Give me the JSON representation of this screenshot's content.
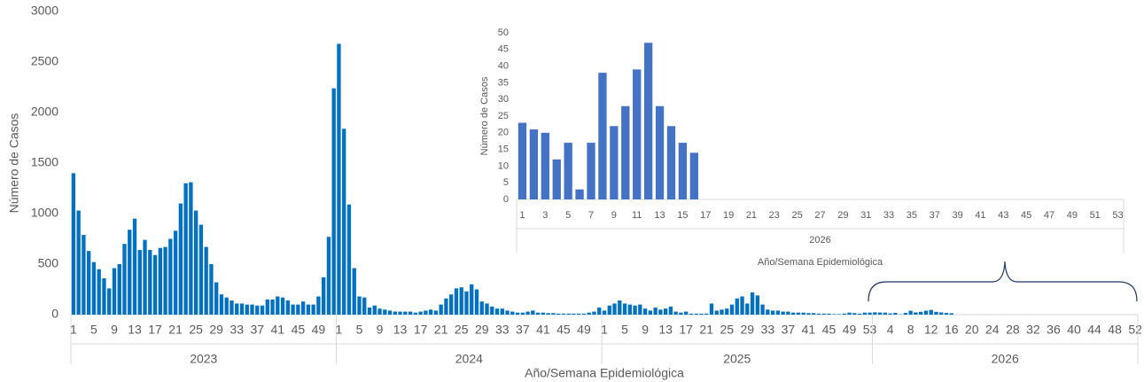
{
  "chart_data": [
    {
      "type": "bar",
      "color": "#0070c0",
      "y_label": "Número de Casos",
      "x_label": "Año/Semana Epidemiológica",
      "ylim": [
        0,
        3000
      ],
      "yticks": [
        0,
        500,
        1000,
        1500,
        2000,
        2500,
        3000
      ],
      "groups": [
        {
          "name": "2023",
          "categories": [
            1,
            null,
            null,
            null,
            5,
            null,
            null,
            null,
            9,
            null,
            null,
            null,
            13,
            null,
            null,
            null,
            17,
            null,
            null,
            null,
            21,
            null,
            null,
            null,
            25,
            null,
            null,
            null,
            29,
            null,
            null,
            null,
            33,
            null,
            null,
            null,
            37,
            null,
            null,
            null,
            41,
            null,
            null,
            null,
            45,
            null,
            null,
            null,
            49,
            null,
            null,
            null
          ],
          "values": [
            1400,
            1030,
            790,
            630,
            520,
            450,
            360,
            260,
            460,
            500,
            700,
            840,
            950,
            640,
            740,
            640,
            590,
            660,
            670,
            750,
            830,
            1100,
            1300,
            1310,
            1030,
            890,
            670,
            500,
            320,
            200,
            170,
            140,
            110,
            110,
            100,
            100,
            90,
            90,
            150,
            150,
            180,
            170,
            140,
            100,
            100,
            130,
            100,
            100,
            180,
            370,
            770,
            2240
          ]
        },
        {
          "name": "2024",
          "categories": [
            1,
            null,
            null,
            null,
            5,
            null,
            null,
            null,
            9,
            null,
            null,
            null,
            13,
            null,
            null,
            null,
            17,
            null,
            null,
            null,
            21,
            null,
            null,
            null,
            25,
            null,
            null,
            null,
            29,
            null,
            null,
            null,
            33,
            null,
            null,
            null,
            37,
            null,
            null,
            null,
            41,
            null,
            null,
            null,
            45,
            null,
            null,
            null,
            49,
            null,
            null,
            null
          ],
          "values": [
            2680,
            1840,
            1090,
            460,
            180,
            170,
            70,
            90,
            60,
            50,
            40,
            30,
            30,
            30,
            30,
            20,
            30,
            40,
            50,
            40,
            100,
            160,
            200,
            260,
            270,
            230,
            300,
            250,
            130,
            110,
            80,
            60,
            60,
            40,
            30,
            20,
            20,
            30,
            40,
            20,
            20,
            15,
            15,
            10,
            10,
            10,
            10,
            10,
            10,
            20,
            30,
            70
          ]
        },
        {
          "name": "2025",
          "categories": [
            1,
            null,
            null,
            null,
            5,
            null,
            null,
            null,
            9,
            null,
            null,
            null,
            13,
            null,
            null,
            null,
            17,
            null,
            null,
            null,
            21,
            null,
            null,
            null,
            25,
            null,
            null,
            null,
            29,
            null,
            null,
            null,
            33,
            null,
            null,
            null,
            37,
            null,
            null,
            null,
            41,
            null,
            null,
            null,
            45,
            null,
            null,
            null,
            49,
            null,
            null,
            null,
            53
          ],
          "values": [
            40,
            90,
            110,
            140,
            110,
            100,
            90,
            100,
            60,
            40,
            70,
            50,
            60,
            80,
            30,
            20,
            30,
            10,
            10,
            10,
            10,
            110,
            40,
            50,
            60,
            100,
            160,
            180,
            110,
            220,
            190,
            100,
            50,
            40,
            40,
            30,
            30,
            20,
            20,
            20,
            15,
            15,
            10,
            10,
            10,
            5,
            5,
            10,
            20,
            15,
            10,
            20,
            20
          ]
        },
        {
          "name": "2026",
          "categories": [
            null,
            null,
            null,
            4,
            null,
            null,
            null,
            8,
            null,
            null,
            null,
            12,
            null,
            null,
            null,
            16,
            null,
            null,
            null,
            20,
            null,
            null,
            null,
            24,
            null,
            null,
            null,
            28,
            null,
            null,
            null,
            32,
            null,
            null,
            null,
            36,
            null,
            null,
            null,
            40,
            null,
            null,
            null,
            44,
            null,
            null,
            null,
            48,
            null,
            null,
            null,
            52
          ],
          "values": [
            23,
            21,
            20,
            12,
            17,
            3,
            17,
            38,
            22,
            28,
            39,
            47,
            28,
            22,
            17,
            14,
            null,
            null,
            null,
            null,
            null,
            null,
            null,
            null,
            null,
            null,
            null,
            null,
            null,
            null,
            null,
            null,
            null,
            null,
            null,
            null,
            null,
            null,
            null,
            null,
            null,
            null,
            null,
            null,
            null,
            null,
            null,
            null,
            null,
            null,
            null,
            null
          ]
        }
      ]
    },
    {
      "type": "bar",
      "color": "#4472c4",
      "y_label": "Número de Casos",
      "x_label": "Año/Semana Epidemiológica",
      "ylim": [
        0,
        50
      ],
      "yticks": [
        0,
        5,
        10,
        15,
        20,
        25,
        30,
        35,
        40,
        45,
        50
      ],
      "groups": [
        {
          "name": "2026",
          "categories": [
            1,
            null,
            3,
            null,
            5,
            null,
            7,
            null,
            9,
            null,
            11,
            null,
            13,
            null,
            15,
            null,
            17,
            null,
            19,
            null,
            21,
            null,
            23,
            null,
            25,
            null,
            27,
            null,
            29,
            null,
            31,
            null,
            33,
            null,
            35,
            null,
            37,
            null,
            39,
            null,
            41,
            null,
            43,
            null,
            45,
            null,
            47,
            null,
            49,
            null,
            51,
            null,
            53
          ],
          "values": [
            23,
            21,
            20,
            12,
            17,
            3,
            17,
            38,
            22,
            28,
            39,
            47,
            28,
            22,
            17,
            14,
            null,
            null,
            null,
            null,
            null,
            null,
            null,
            null,
            null,
            null,
            null,
            null,
            null,
            null,
            null,
            null,
            null,
            null,
            null,
            null,
            null,
            null,
            null,
            null,
            null,
            null,
            null,
            null,
            null,
            null,
            null,
            null,
            null,
            null,
            null,
            null,
            null
          ]
        }
      ]
    }
  ]
}
